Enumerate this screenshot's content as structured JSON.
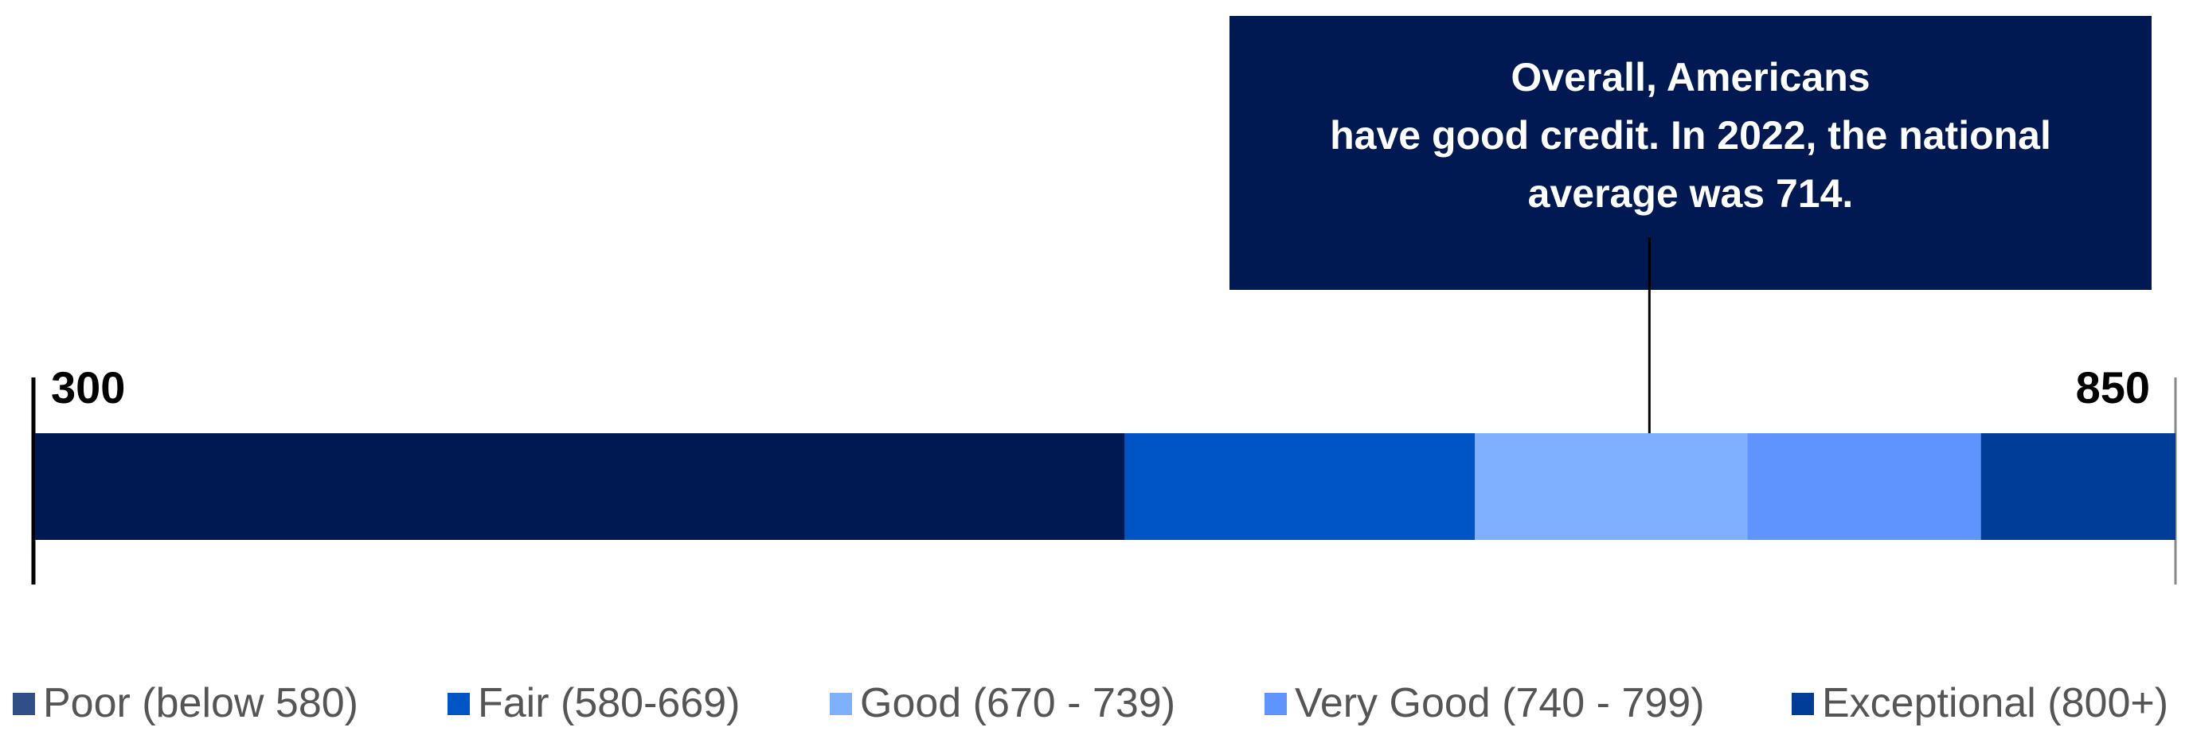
{
  "chart_data": {
    "type": "bar",
    "orientation": "horizontal-stacked-range",
    "axis": {
      "min": 300,
      "max": 850
    },
    "min_label": "300",
    "max_label": "850",
    "segments": [
      {
        "name": "Poor (below 580)",
        "start": 300,
        "end": 580,
        "color": "#001952"
      },
      {
        "name": "Fair  (580-669)",
        "start": 580,
        "end": 670,
        "color": "#0055c6"
      },
      {
        "name": "Good (670 -  739)",
        "start": 670,
        "end": 740,
        "color": "#7fb0ff"
      },
      {
        "name": "Very Good (740 - 799)",
        "start": 740,
        "end": 800,
        "color": "#5f93fd"
      },
      {
        "name": "Exceptional (800+)",
        "start": 800,
        "end": 850,
        "color": "#003d99"
      }
    ],
    "legend_markers": [
      "#304f87",
      "#0055c6",
      "#7fb0ff",
      "#5f93fd",
      "#003d99"
    ],
    "annotation": {
      "lines": [
        "Overall, Americans",
        "have good credit. In 2022, the national",
        "average was 714."
      ],
      "value": 714,
      "background": "#001952"
    },
    "legend_position": "bottom"
  }
}
